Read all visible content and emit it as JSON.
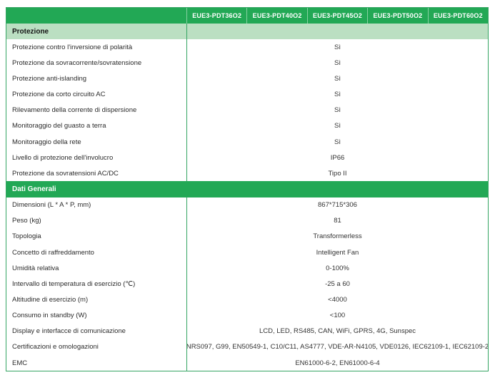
{
  "table": {
    "header": {
      "models": [
        "EUE3-PDT36O2",
        "EUE3-PDT40O2",
        "EUE3-PDT45O2",
        "EUE3-PDT50O2",
        "EUE3-PDT60O2"
      ]
    },
    "sections": [
      {
        "title": "Protezione",
        "style": "light",
        "rows": [
          {
            "label": "Protezione contro l'inversione di polarità",
            "value": "Sì"
          },
          {
            "label": "Protezione da sovracorrente/sovratensione",
            "value": "Sì"
          },
          {
            "label": "Protezione anti-islanding",
            "value": "Sì"
          },
          {
            "label": "Protezione da corto circuito AC",
            "value": "Sì"
          },
          {
            "label": "Rilevamento della corrente di dispersione",
            "value": "Sì"
          },
          {
            "label": "Monitoraggio del guasto a terra",
            "value": "Sì"
          },
          {
            "label": "Monitoraggio della rete",
            "value": "Sì"
          },
          {
            "label": "Livello di protezione dell'involucro",
            "value": "IP66"
          },
          {
            "label": "Protezione da sovratensioni AC/DC",
            "value": "Tipo II"
          }
        ]
      },
      {
        "title": "Dati Generali",
        "style": "dark",
        "rows": [
          {
            "label": "Dimensioni (L * A * P, mm)",
            "value": "867*715*306"
          },
          {
            "label": "Peso (kg)",
            "value": "81"
          },
          {
            "label": "Topologia",
            "value": "Transformerless"
          },
          {
            "label": "Concetto di raffreddamento",
            "value": "Intelligent Fan"
          },
          {
            "label": "Umidità relativa",
            "value": "0-100%"
          },
          {
            "label": "Intervallo di temperatura di esercizio (℃)",
            "value": "-25 a 60"
          },
          {
            "label": "Altitudine di esercizio (m)",
            "value": "<4000"
          },
          {
            "label": "Consumo in standby (W)",
            "value": "<100"
          },
          {
            "label": "Display e interfacce di comunicazione",
            "value": "LCD, LED, RS485, CAN, WiFi, GPRS, 4G, Sunspec"
          },
          {
            "label": "Certificazioni e omologazioni",
            "value": "NRS097, G99, EN50549-1, C10/C11, AS4777, VDE-AR-N4105, VDE0126, IEC62109-1, IEC62109-2"
          },
          {
            "label": "EMC",
            "value": "EN61000-6-2, EN61000-6-4"
          }
        ]
      }
    ],
    "colors": {
      "green": "#22a855",
      "light_green": "#bbdfc2",
      "border_green": "#35a563",
      "header_text": "#ffffff",
      "body_text": "#2b2b2b"
    }
  }
}
